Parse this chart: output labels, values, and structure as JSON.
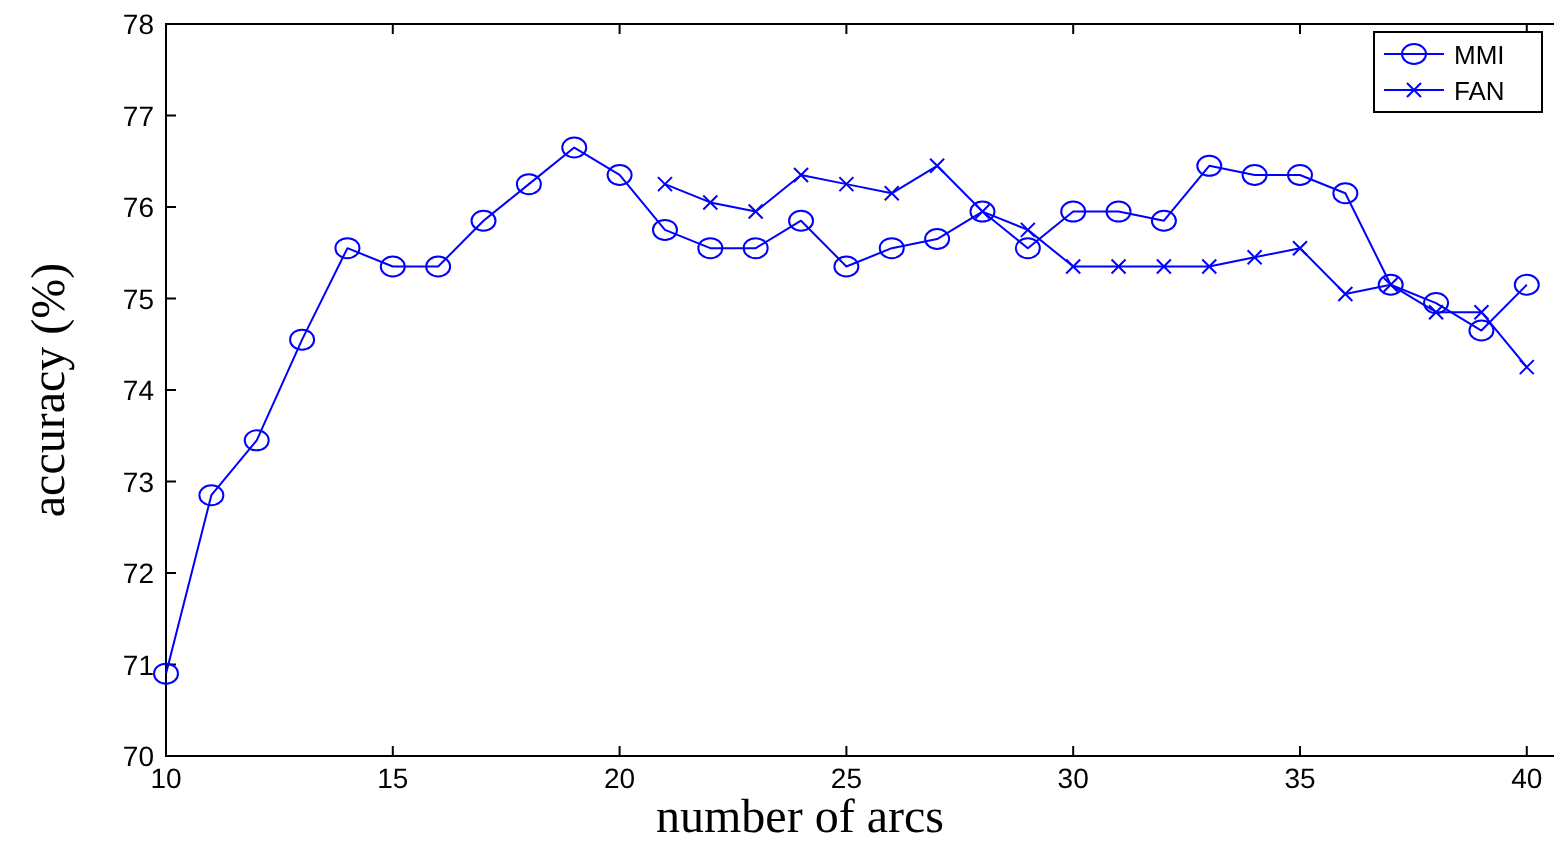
{
  "chart_data": {
    "type": "line",
    "xlabel": "number of arcs",
    "ylabel": "accuracy (%)",
    "xlim": [
      10,
      40.6
    ],
    "xticks": [
      10,
      15,
      20,
      25,
      30,
      35,
      40
    ],
    "ylim": [
      70,
      78
    ],
    "yticks": [
      70,
      71,
      72,
      73,
      74,
      75,
      76,
      77,
      78
    ],
    "legend": "top right",
    "grid": false,
    "line_style": "solid",
    "series": [
      {
        "name": "MMI",
        "color": "#0000ff",
        "marker": "circle",
        "x": [
          10,
          11,
          12,
          13,
          14,
          15,
          16,
          17,
          18,
          19,
          20,
          21,
          22,
          23,
          24,
          25,
          26,
          27,
          28,
          29,
          30,
          31,
          32,
          33,
          34,
          35,
          36,
          37,
          38,
          39,
          40
        ],
        "values": [
          70.9,
          72.85,
          73.45,
          74.55,
          75.55,
          75.35,
          75.35,
          75.85,
          76.25,
          76.65,
          76.35,
          75.75,
          75.55,
          75.55,
          75.85,
          75.35,
          75.55,
          75.65,
          75.95,
          75.55,
          75.95,
          75.95,
          75.85,
          76.45,
          76.35,
          76.35,
          76.15,
          75.15,
          74.95,
          74.65,
          75.15
        ]
      },
      {
        "name": "FAN",
        "color": "#0000ff",
        "marker": "cross",
        "x": [
          21,
          22,
          23,
          24,
          25,
          26,
          27,
          28,
          29,
          30,
          31,
          32,
          33,
          34,
          35,
          36,
          37,
          38,
          39,
          40
        ],
        "values": [
          76.25,
          76.05,
          75.95,
          76.35,
          76.25,
          76.15,
          76.45,
          75.95,
          75.75,
          75.35,
          75.35,
          75.35,
          75.35,
          75.45,
          75.55,
          75.05,
          75.15,
          74.85,
          74.85,
          74.25
        ]
      }
    ]
  }
}
